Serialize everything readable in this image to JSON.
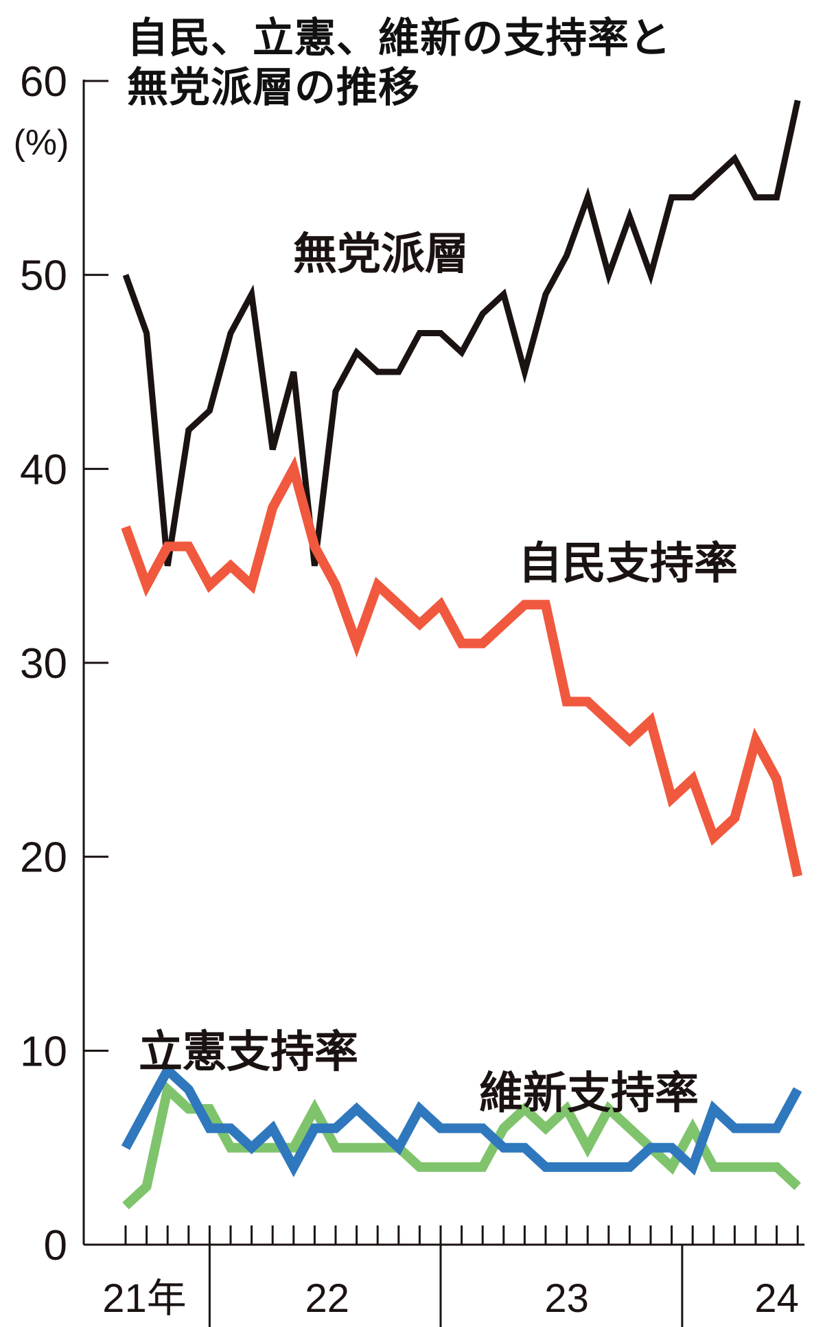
{
  "chart_data": {
    "type": "line",
    "title_lines": [
      "自民、立憲、維新の支持率と",
      "無党派層の推移"
    ],
    "unit_label": "(%)",
    "ylim": [
      0,
      60
    ],
    "yticks": [
      "0",
      "10",
      "20",
      "30",
      "40",
      "50",
      "60"
    ],
    "year_labels": [
      {
        "label": "21年",
        "month_index": 0.9
      },
      {
        "label": "22",
        "month_index": 9.6
      },
      {
        "label": "23",
        "month_index": 21.0
      },
      {
        "label": "24",
        "month_index": 31.0
      }
    ],
    "year_boundaries": [
      4,
      15,
      26.5
    ],
    "series": [
      {
        "name": "無党派層",
        "color": "#1a1311",
        "values": [
          50,
          47,
          35,
          42,
          43,
          47,
          49,
          41,
          45,
          35,
          44,
          46,
          45,
          45,
          47,
          47,
          46,
          48,
          49,
          45,
          49,
          51,
          54,
          50,
          53,
          50,
          54,
          54,
          55,
          56,
          54,
          54,
          59
        ]
      },
      {
        "name": "自民支持率",
        "color": "#f0593e",
        "values": [
          37,
          34,
          36,
          36,
          34,
          35,
          34,
          38,
          40,
          36,
          34,
          31,
          34,
          33,
          32,
          33,
          31,
          31,
          32,
          33,
          33,
          28,
          28,
          27,
          26,
          27,
          23,
          24,
          21,
          22,
          26,
          24,
          19
        ]
      },
      {
        "name": "立憲支持率",
        "color": "#2f78bd",
        "values": [
          5,
          7,
          9,
          8,
          6,
          6,
          5,
          6,
          4,
          6,
          6,
          7,
          6,
          5,
          7,
          6,
          6,
          6,
          5,
          5,
          4,
          4,
          4,
          4,
          4,
          5,
          5,
          4,
          7,
          6,
          6,
          6,
          8
        ]
      },
      {
        "name": "維新支持率",
        "color": "#7fc46c",
        "values": [
          2,
          3,
          8,
          7,
          7,
          5,
          5,
          5,
          5,
          7,
          5,
          5,
          5,
          5,
          4,
          4,
          4,
          4,
          6,
          7,
          6,
          7,
          5,
          7,
          6,
          5,
          4,
          6,
          4,
          4,
          4,
          4,
          3
        ]
      }
    ]
  }
}
